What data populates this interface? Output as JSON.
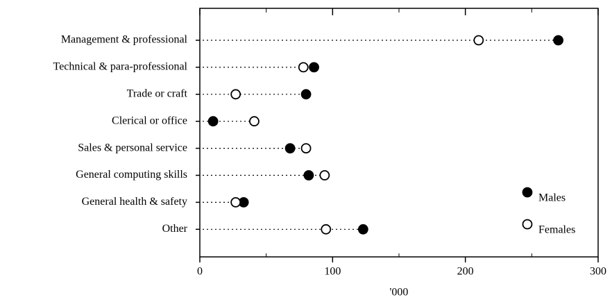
{
  "chart_data": {
    "type": "dot",
    "categories": [
      "Management & professional",
      "Technical & para-professional",
      "Trade or craft",
      "Clerical or office",
      "Sales & personal service",
      "General computing skills",
      "General health & safety",
      "Other"
    ],
    "series": [
      {
        "name": "Males",
        "color": "#000000",
        "filled": true,
        "values": [
          270,
          86,
          80,
          10,
          68,
          82,
          33,
          123
        ]
      },
      {
        "name": "Females",
        "color": "#000000",
        "filled": false,
        "values": [
          210,
          78,
          27,
          41,
          80,
          94,
          27,
          95
        ]
      }
    ],
    "xlabel": "'000",
    "xlim": [
      0,
      300
    ],
    "xticks": [
      0,
      100,
      200,
      300
    ],
    "minor_xticks": [
      50,
      150,
      250
    ],
    "legend": "lower right"
  }
}
